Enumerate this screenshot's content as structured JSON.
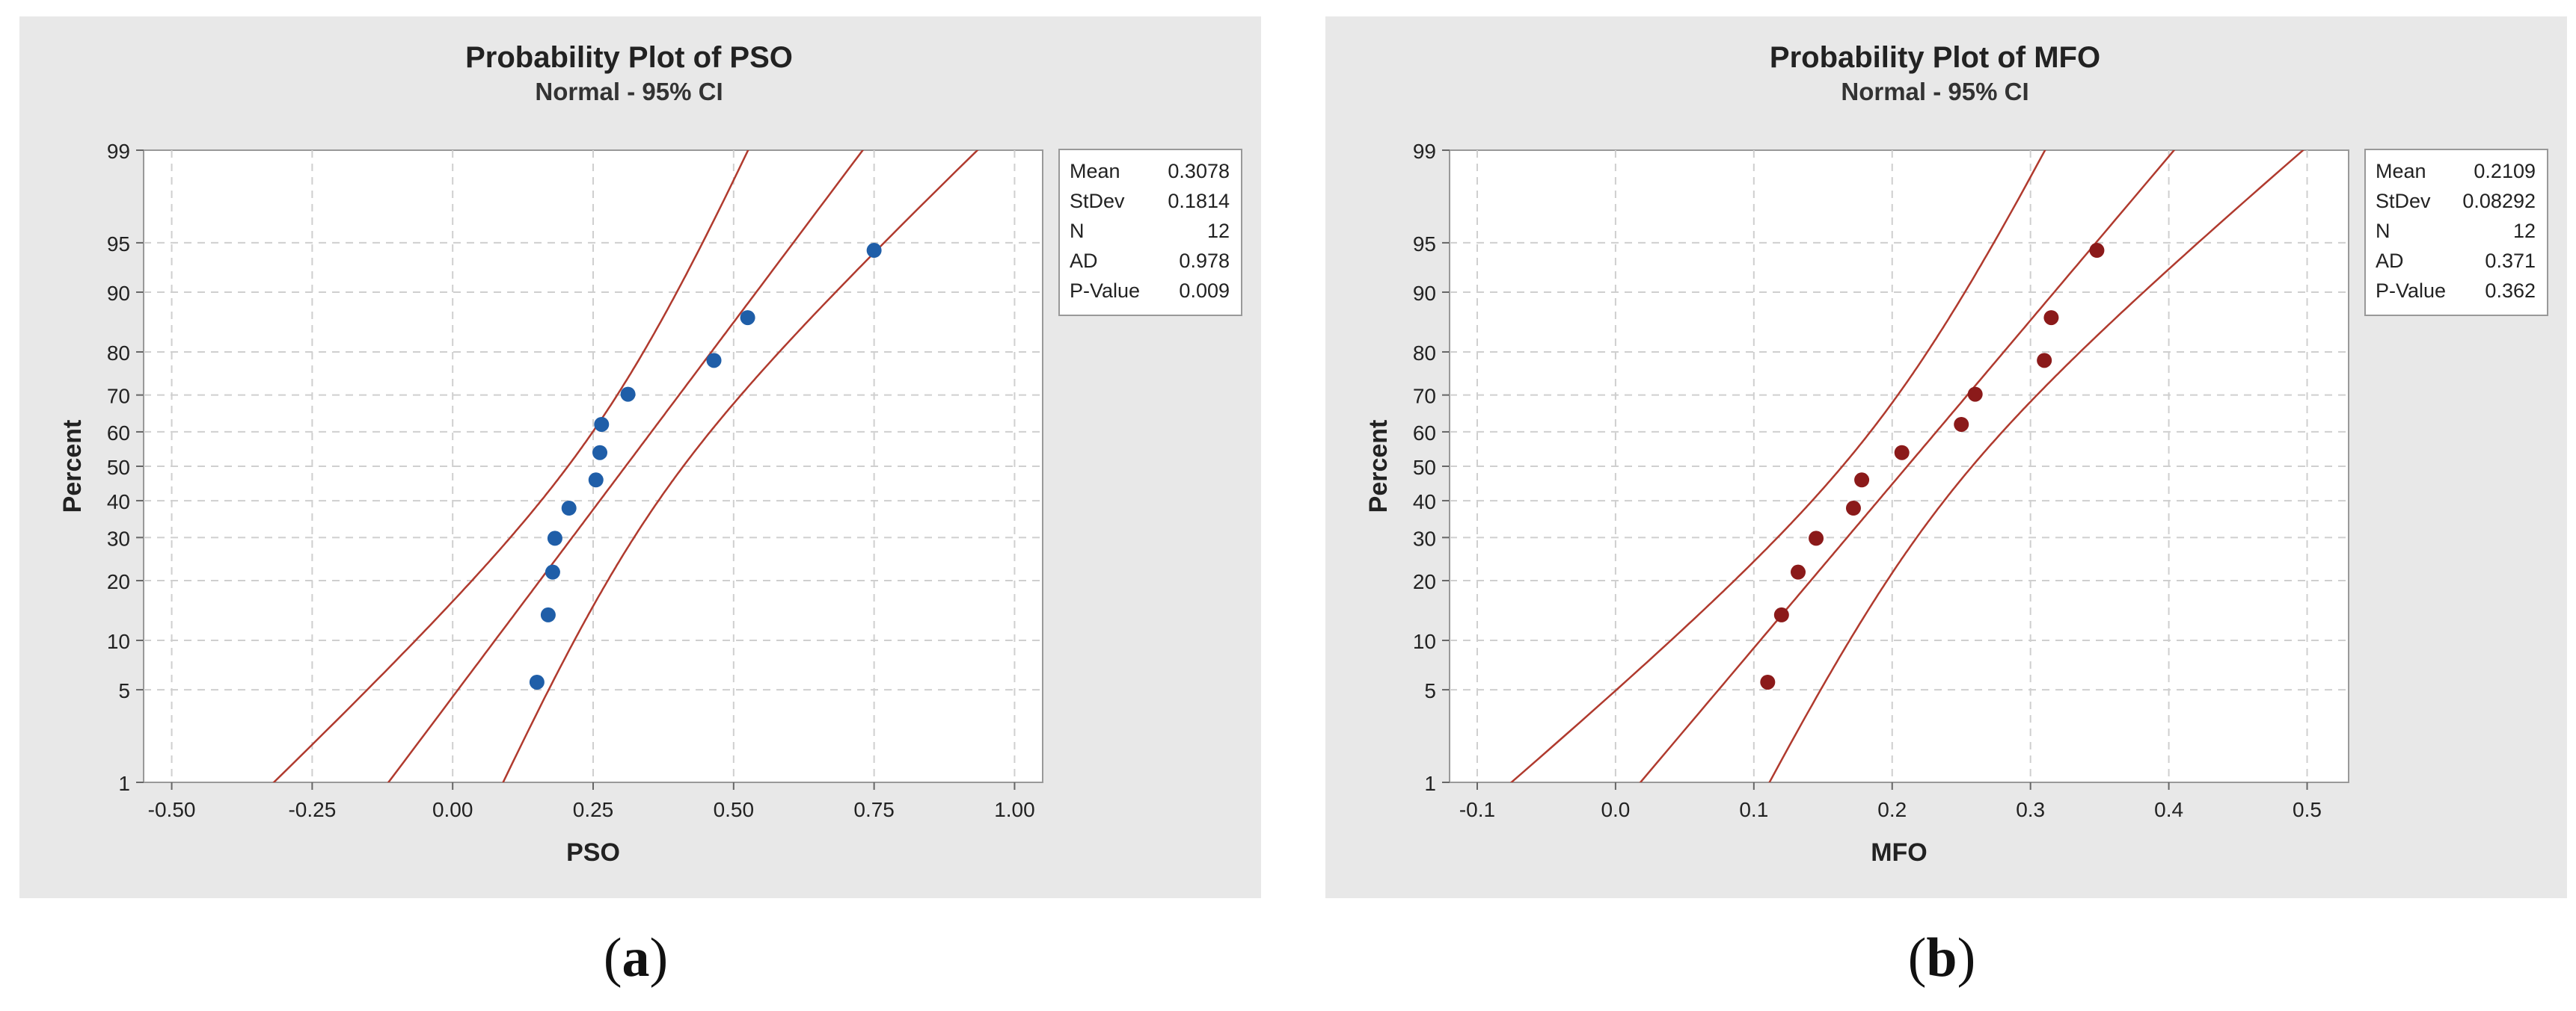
{
  "chart_data": [
    {
      "type": "scatter",
      "title": "Probability Plot of PSO",
      "subtitle": "Normal - 95% CI",
      "xlabel": "PSO",
      "ylabel": "Percent",
      "xlim": [
        -0.55,
        1.05
      ],
      "x_ticks": [
        "-0.50",
        "-0.25",
        "0.00",
        "0.25",
        "0.50",
        "0.75",
        "1.00"
      ],
      "x_tick_values": [
        -0.5,
        -0.25,
        0,
        0.25,
        0.5,
        0.75,
        1.0
      ],
      "y_ticks": [
        "1",
        "5",
        "10",
        "20",
        "30",
        "40",
        "50",
        "60",
        "70",
        "80",
        "90",
        "95",
        "99"
      ],
      "y_scale": "normal probability",
      "grid": true,
      "mean": 0.3078,
      "stdev": 0.1814,
      "points": [
        {
          "x": 0.15,
          "y": 5.6
        },
        {
          "x": 0.17,
          "y": 13.7
        },
        {
          "x": 0.178,
          "y": 21.8
        },
        {
          "x": 0.182,
          "y": 29.8
        },
        {
          "x": 0.207,
          "y": 37.9
        },
        {
          "x": 0.255,
          "y": 46.0
        },
        {
          "x": 0.262,
          "y": 54.0
        },
        {
          "x": 0.265,
          "y": 62.1
        },
        {
          "x": 0.312,
          "y": 70.2
        },
        {
          "x": 0.465,
          "y": 78.2
        },
        {
          "x": 0.525,
          "y": 86.3
        },
        {
          "x": 0.75,
          "y": 94.4
        }
      ],
      "marker_color": "#1f5ea8",
      "line_color": "#b03a2e",
      "stats": [
        {
          "label": "Mean",
          "value": "0.3078"
        },
        {
          "label": "StDev",
          "value": "0.1814"
        },
        {
          "label": "N",
          "value": "12"
        },
        {
          "label": "AD",
          "value": "0.978"
        },
        {
          "label": "P-Value",
          "value": "0.009"
        }
      ]
    },
    {
      "type": "scatter",
      "title": "Probability Plot of MFO",
      "subtitle": "Normal - 95% CI",
      "xlabel": "MFO",
      "ylabel": "Percent",
      "xlim": [
        -0.12,
        0.53
      ],
      "x_ticks": [
        "-0.1",
        "0.0",
        "0.1",
        "0.2",
        "0.3",
        "0.4",
        "0.5"
      ],
      "x_tick_values": [
        -0.1,
        0,
        0.1,
        0.2,
        0.3,
        0.4,
        0.5
      ],
      "y_ticks": [
        "1",
        "5",
        "10",
        "20",
        "30",
        "40",
        "50",
        "60",
        "70",
        "80",
        "90",
        "95",
        "99"
      ],
      "y_scale": "normal probability",
      "grid": true,
      "mean": 0.2109,
      "stdev": 0.08292,
      "points": [
        {
          "x": 0.11,
          "y": 5.6
        },
        {
          "x": 0.12,
          "y": 13.7
        },
        {
          "x": 0.132,
          "y": 21.8
        },
        {
          "x": 0.145,
          "y": 29.8
        },
        {
          "x": 0.172,
          "y": 37.9
        },
        {
          "x": 0.178,
          "y": 46.0
        },
        {
          "x": 0.207,
          "y": 54.0
        },
        {
          "x": 0.25,
          "y": 62.1
        },
        {
          "x": 0.26,
          "y": 70.2
        },
        {
          "x": 0.31,
          "y": 78.2
        },
        {
          "x": 0.315,
          "y": 86.3
        },
        {
          "x": 0.348,
          "y": 94.4
        }
      ],
      "marker_color": "#8b1a1a",
      "line_color": "#b03a2e",
      "stats": [
        {
          "label": "Mean",
          "value": "0.2109"
        },
        {
          "label": "StDev",
          "value": "0.08292"
        },
        {
          "label": "N",
          "value": "12"
        },
        {
          "label": "AD",
          "value": "0.371"
        },
        {
          "label": "P-Value",
          "value": "0.362"
        }
      ]
    }
  ],
  "captions": {
    "a": {
      "open": "(",
      "letter": "a",
      "close": ")"
    },
    "b": {
      "open": "(",
      "letter": "b",
      "close": ")"
    }
  }
}
